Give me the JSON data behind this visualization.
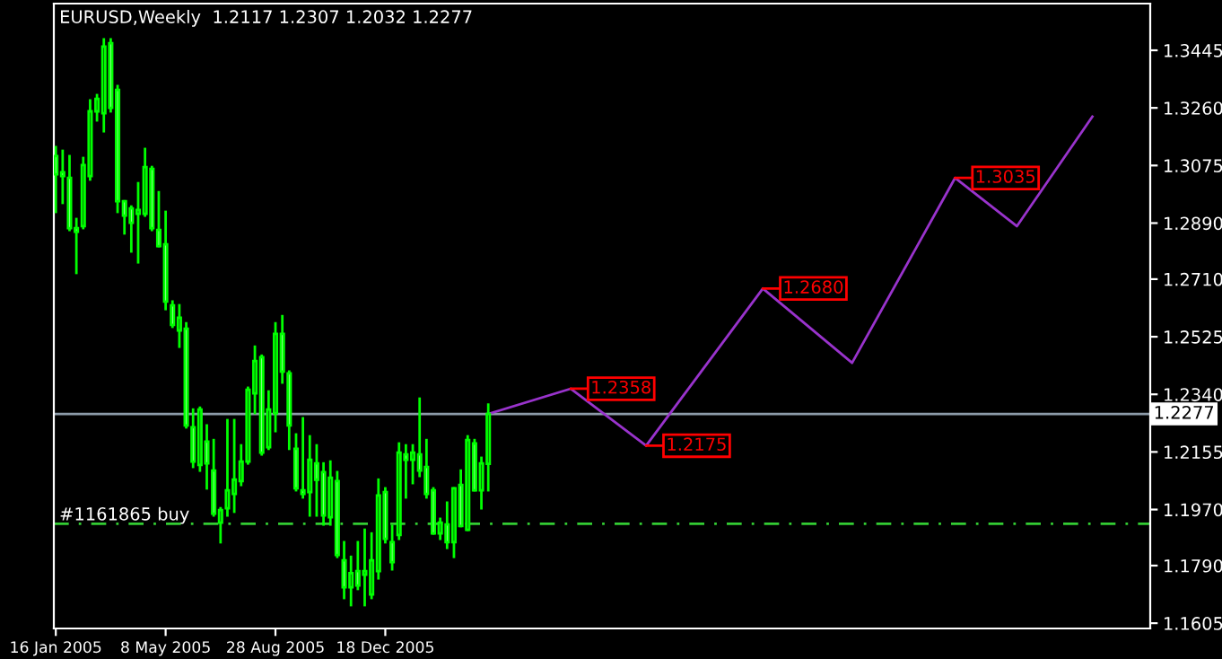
{
  "chart_data": {
    "type": "candlestick",
    "title": "EURUSD,Weekly  1.2117 1.2307 1.2032 1.2277",
    "color": "#00ff00",
    "x": [
      "2005-01-16",
      "2005-01-23",
      "2005-01-30",
      "2005-02-06",
      "2005-02-13",
      "2005-02-20",
      "2005-02-27",
      "2005-03-06",
      "2005-03-13",
      "2005-03-20",
      "2005-03-27",
      "2005-04-03",
      "2005-04-10",
      "2005-04-17",
      "2005-04-24",
      "2005-05-01",
      "2005-05-08",
      "2005-05-15",
      "2005-05-22",
      "2005-05-29",
      "2005-06-05",
      "2005-06-12",
      "2005-06-19",
      "2005-06-26",
      "2005-07-03",
      "2005-07-10",
      "2005-07-17",
      "2005-07-24",
      "2005-07-31",
      "2005-08-07",
      "2005-08-14",
      "2005-08-21",
      "2005-08-28",
      "2005-09-04",
      "2005-09-11",
      "2005-09-18",
      "2005-09-25",
      "2005-10-02",
      "2005-10-09",
      "2005-10-16",
      "2005-10-23",
      "2005-10-30",
      "2005-11-06",
      "2005-11-13",
      "2005-11-20",
      "2005-11-27",
      "2005-12-04",
      "2005-12-11",
      "2005-12-18",
      "2005-12-25",
      "2006-01-01",
      "2006-01-08",
      "2006-01-15",
      "2006-01-22",
      "2006-01-29",
      "2006-02-05",
      "2006-02-12",
      "2006-02-19",
      "2006-02-26",
      "2006-03-05",
      "2006-03-12",
      "2006-03-19",
      "2006-03-26",
      "2006-04-02"
    ],
    "ohlc": [
      [
        1.3105,
        1.3134,
        1.2926,
        1.3047
      ],
      [
        1.3053,
        1.3122,
        1.2955,
        1.3041
      ],
      [
        1.3035,
        1.3105,
        1.2868,
        1.2874
      ],
      [
        1.2874,
        1.2903,
        1.273,
        1.2862
      ],
      [
        1.288,
        1.3099,
        1.2874,
        1.3076
      ],
      [
        1.3041,
        1.3284,
        1.303,
        1.3249
      ],
      [
        1.3249,
        1.3301,
        1.322,
        1.3289
      ],
      [
        1.3243,
        1.348,
        1.3185,
        1.3457
      ],
      [
        1.3468,
        1.348,
        1.3249,
        1.326
      ],
      [
        1.3318,
        1.333,
        1.2926,
        1.296
      ],
      [
        1.296,
        1.296,
        1.2857,
        1.2914
      ],
      [
        1.2937,
        1.2943,
        1.2799,
        1.2891
      ],
      [
        1.292,
        1.3018,
        1.2764,
        1.2932
      ],
      [
        1.292,
        1.3128,
        1.2914,
        1.307
      ],
      [
        1.3064,
        1.307,
        1.2868,
        1.2874
      ],
      [
        1.2868,
        1.2989,
        1.2816,
        1.2816
      ],
      [
        1.2822,
        1.2926,
        1.2614,
        1.2638
      ],
      [
        1.2626,
        1.2638,
        1.2557,
        1.2563
      ],
      [
        1.2545,
        1.2626,
        1.2493,
        1.2586
      ],
      [
        1.2551,
        1.2568,
        1.2234,
        1.224
      ],
      [
        1.2234,
        1.2291,
        1.2107,
        1.2124
      ],
      [
        1.2113,
        1.2297,
        1.2095,
        1.2291
      ],
      [
        1.2188,
        1.224,
        1.2038,
        1.2118
      ],
      [
        1.2095,
        1.2193,
        1.1951,
        1.1957
      ],
      [
        1.1928,
        1.1974,
        1.1865,
        1.1968
      ],
      [
        1.1974,
        1.2257,
        1.1951,
        1.2032
      ],
      [
        1.202,
        1.2257,
        1.1963,
        1.2066
      ],
      [
        1.2061,
        1.2176,
        1.2049,
        1.2124
      ],
      [
        1.2124,
        1.2361,
        1.2118,
        1.2355
      ],
      [
        1.2343,
        1.2493,
        1.228,
        1.2447
      ],
      [
        1.2459,
        1.2464,
        1.2147,
        1.2153
      ],
      [
        1.217,
        1.2349,
        1.2165,
        1.2291
      ],
      [
        1.228,
        1.2568,
        1.2222,
        1.2534
      ],
      [
        1.2534,
        1.2591,
        1.2378,
        1.2413
      ],
      [
        1.2407,
        1.2413,
        1.2165,
        1.224
      ],
      [
        1.2165,
        1.2211,
        1.2032,
        1.2038
      ],
      [
        1.2032,
        1.2263,
        1.2009,
        1.202
      ],
      [
        1.2026,
        1.2205,
        1.1951,
        1.213
      ],
      [
        1.2118,
        1.2176,
        1.1951,
        1.2066
      ],
      [
        1.209,
        1.2118,
        1.1922,
        1.1951
      ],
      [
        1.1945,
        1.2124,
        1.1922,
        1.2072
      ],
      [
        1.2061,
        1.209,
        1.1818,
        1.1824
      ],
      [
        1.1807,
        1.1865,
        1.1686,
        1.172
      ],
      [
        1.172,
        1.1818,
        1.1663,
        1.1766
      ],
      [
        1.1772,
        1.1865,
        1.1715,
        1.1726
      ],
      [
        1.1761,
        1.1905,
        1.1663,
        1.1772
      ],
      [
        1.1697,
        1.1893,
        1.1686,
        1.1807
      ],
      [
        1.1772,
        1.2066,
        1.1749,
        1.2015
      ],
      [
        1.2026,
        1.2038,
        1.1865,
        1.1876
      ],
      [
        1.1865,
        1.1917,
        1.1778,
        1.1801
      ],
      [
        1.1888,
        1.2182,
        1.1876,
        1.2153
      ],
      [
        1.2147,
        1.2176,
        1.2009,
        1.213
      ],
      [
        1.213,
        1.2176,
        1.2055,
        1.2153
      ],
      [
        1.2147,
        1.2326,
        1.2078,
        1.2095
      ],
      [
        1.2107,
        1.2193,
        1.2009,
        1.202
      ],
      [
        1.2032,
        1.2038,
        1.1893,
        1.1893
      ],
      [
        1.1893,
        1.194,
        1.1876,
        1.1928
      ],
      [
        1.1922,
        1.1992,
        1.1847,
        1.1865
      ],
      [
        1.1865,
        1.2038,
        1.1818,
        1.2038
      ],
      [
        1.2049,
        1.2095,
        1.1917,
        1.1917
      ],
      [
        1.1905,
        1.2205,
        1.1905,
        1.2193
      ],
      [
        1.2182,
        1.2193,
        1.2032,
        1.2032
      ],
      [
        1.2032,
        1.2136,
        1.1974,
        1.2118
      ],
      [
        1.2117,
        1.2307,
        1.2032,
        1.2277
      ]
    ],
    "series": [
      {
        "type": "line",
        "color": "#9933cc",
        "x": [
          "2006-04-02",
          "2006-06-25",
          "2006-09-10",
          "2007-01-07",
          "2007-04-08",
          "2007-07-22",
          "2007-09-23",
          "2007-12-09"
        ],
        "values": [
          1.2277,
          1.2358,
          1.2175,
          1.268,
          1.2441,
          1.3035,
          1.288,
          1.3232
        ],
        "value_labels": [
          null,
          "1.2358",
          "1.2175",
          "1.2680",
          null,
          "1.3035",
          null,
          null
        ]
      }
    ],
    "ref_lines": [
      {
        "axis": "y",
        "value": 1.2277,
        "label": "1.2277",
        "color": "#8c9aa8",
        "line_style": "solid"
      },
      {
        "axis": "y",
        "value": 1.1924,
        "label": "#1161865 buy",
        "color": "#33cc33",
        "line_style": "dashed"
      }
    ],
    "xlim": [
      "2005-01-14",
      "2008-02-06"
    ],
    "xticks": [
      {
        "value": "2005-01-16",
        "label": "16 Jan 2005"
      },
      {
        "value": "2005-05-08",
        "label": "8 May 2005"
      },
      {
        "value": "2005-08-28",
        "label": "28 Aug 2005"
      },
      {
        "value": "2005-12-18",
        "label": "18 Dec 2005"
      }
    ],
    "ylim": [
      1.1588,
      1.3595
    ],
    "yticks": [
      {
        "value": 1.3445,
        "label": "1.3445"
      },
      {
        "value": 1.326,
        "label": "1.3260"
      },
      {
        "value": 1.3075,
        "label": "1.3075"
      },
      {
        "value": 1.289,
        "label": "1.2890"
      },
      {
        "value": 1.271,
        "label": "1.2710"
      },
      {
        "value": 1.2525,
        "label": "1.2525"
      },
      {
        "value": 1.234,
        "label": "1.2340"
      },
      {
        "value": 1.2155,
        "label": "1.2155"
      },
      {
        "value": 1.197,
        "label": "1.1970"
      },
      {
        "value": 1.179,
        "label": "1.1790"
      },
      {
        "value": 1.1605,
        "label": "1.1605"
      }
    ]
  }
}
